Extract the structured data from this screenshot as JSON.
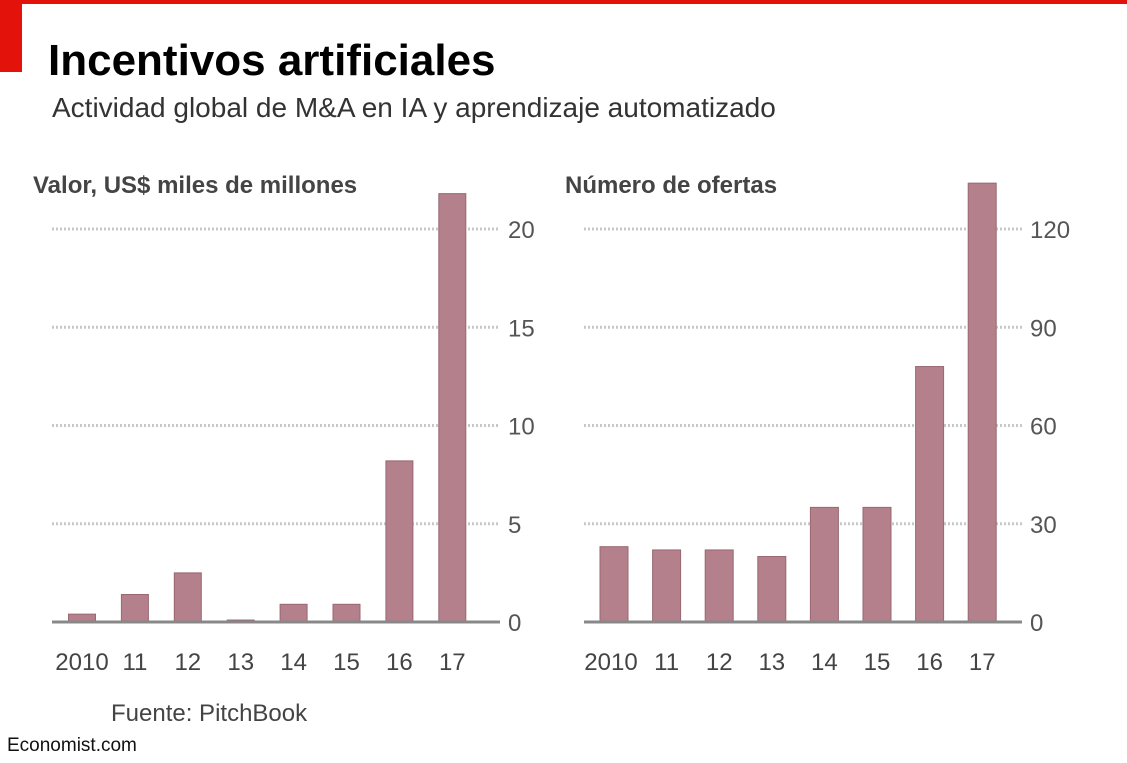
{
  "title": "Incentivos artificiales",
  "subtitle": "Actividad global de M&A en IA y aprendizaje automatizado",
  "source": "Fuente: PitchBook",
  "footer": "Economist.com",
  "colors": {
    "bar": "#b4808b",
    "bar_edge": "#9a6772",
    "grid": "#c8c8c8",
    "baseline": "#888888",
    "accent": "#e3120b"
  },
  "chart_data": [
    {
      "type": "bar",
      "title": "Valor, US$ miles de millones",
      "categories": [
        "2010",
        "11",
        "12",
        "13",
        "14",
        "15",
        "16",
        "17"
      ],
      "values": [
        0.4,
        1.4,
        2.5,
        0.1,
        0.9,
        0.9,
        8.2,
        21.8
      ],
      "ylim": [
        0,
        20
      ],
      "yticks": [
        0,
        5,
        10,
        15,
        20
      ],
      "grid": true,
      "axis_side": "right"
    },
    {
      "type": "bar",
      "title": "Número de ofertas",
      "categories": [
        "2010",
        "11",
        "12",
        "13",
        "14",
        "15",
        "16",
        "17"
      ],
      "values": [
        23,
        22,
        22,
        20,
        35,
        35,
        78,
        134
      ],
      "ylim": [
        0,
        120
      ],
      "yticks": [
        0,
        30,
        60,
        90,
        120
      ],
      "grid": true,
      "axis_side": "right"
    }
  ]
}
